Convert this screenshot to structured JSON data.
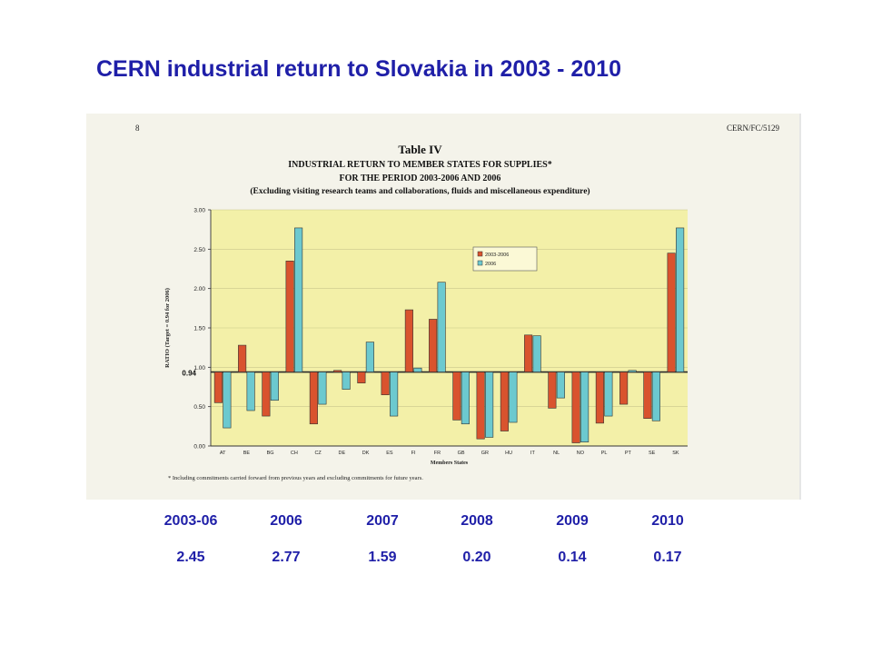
{
  "title": "CERN industrial return to Slovakia in 2003 - 2010",
  "document": {
    "page_number": "8",
    "reference": "CERN/FC/5129",
    "table_label": "Table IV",
    "heading_line1": "INDUSTRIAL RETURN TO MEMBER STATES FOR SUPPLIES*",
    "heading_line2": "FOR THE PERIOD 2003-2006 AND 2006",
    "heading_line3": "(Excluding visiting research teams and collaborations, fluids and miscellaneous expenditure)",
    "footnote": "* Including commitments carried forward from previous years and excluding commitments for future years."
  },
  "chart_data": {
    "type": "bar",
    "xlabel": "Members States",
    "ylabel": "RATIO (Target = 0.94 for 2006)",
    "ylim": [
      0,
      3
    ],
    "yticks": [
      "0.00",
      "0.50",
      "1.00",
      "1.50",
      "2.00",
      "2.50",
      "3.00"
    ],
    "baseline": 0.94,
    "baseline_label": "0.94",
    "background": "#f3f0a8",
    "legend_position": "top-right",
    "categories": [
      "AT",
      "BE",
      "BG",
      "CH",
      "CZ",
      "DE",
      "DK",
      "ES",
      "FI",
      "FR",
      "GB",
      "GR",
      "HU",
      "IT",
      "NL",
      "NO",
      "PL",
      "PT",
      "SE",
      "SK"
    ],
    "series": [
      {
        "name": "2003-2006",
        "color": "#d9532e",
        "values": [
          0.55,
          1.28,
          0.38,
          2.35,
          0.28,
          0.96,
          0.8,
          0.65,
          1.73,
          1.61,
          0.33,
          0.09,
          0.19,
          1.41,
          0.48,
          0.04,
          0.29,
          0.53,
          0.35,
          2.45
        ]
      },
      {
        "name": "2006",
        "color": "#6cc9cf",
        "values": [
          0.23,
          0.45,
          0.58,
          2.77,
          0.53,
          0.72,
          1.32,
          0.38,
          0.99,
          2.08,
          0.28,
          0.11,
          0.3,
          1.4,
          0.61,
          0.05,
          0.38,
          0.96,
          0.32,
          2.77
        ]
      }
    ]
  },
  "summary": {
    "headers": [
      "2003-06",
      "2006",
      "2007",
      "2008",
      "2009",
      "2010"
    ],
    "values": [
      "2.45",
      "2.77",
      "1.59",
      "0.20",
      "0.14",
      "0.17"
    ]
  }
}
